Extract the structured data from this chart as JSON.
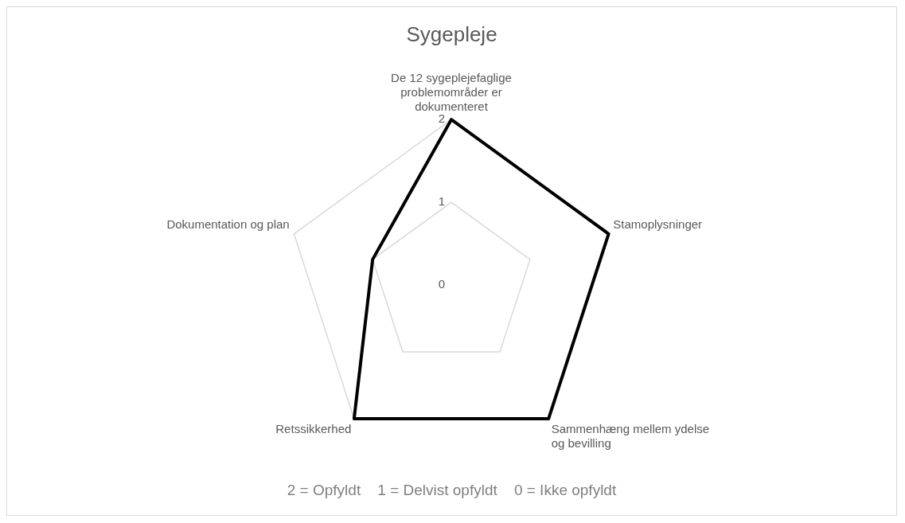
{
  "chart_data": {
    "type": "radar",
    "title": "Sygepleje",
    "categories": [
      "De 12 sygeplejefaglige problemområder er dokumenteret",
      "Stamoplysninger",
      "Sammenhæng mellem ydelse og bevilling",
      "Retssikkerhed",
      "Dokumentation og plan"
    ],
    "series": [
      {
        "color": "#000000",
        "values": [
          2,
          2,
          2,
          2,
          1
        ]
      }
    ],
    "ylim": [
      0,
      2
    ],
    "yticks": [
      0,
      1,
      2
    ],
    "grid": true,
    "legend": false,
    "marker": "none",
    "line_style": "solid",
    "annotations": [
      "2 = Opfyldt    1 = Delvist opfyldt    0 = Ikke opfyldt"
    ]
  }
}
